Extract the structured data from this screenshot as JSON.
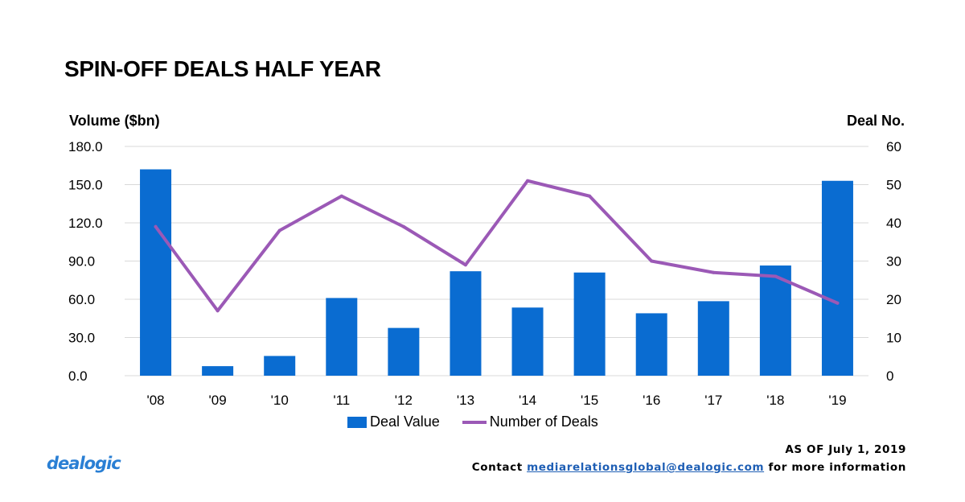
{
  "title": "SPIN-OFF DEALS HALF YEAR",
  "colors": {
    "bar": "#0a6cd1",
    "line": "#9b59b6",
    "grid": "#d9d9d9",
    "link": "#1f5fb5",
    "logo": "#2a7fd4"
  },
  "chart_data": {
    "type": "bar",
    "title": "SPIN-OFF DEALS HALF YEAR",
    "categories": [
      "'08",
      "'09",
      "'10",
      "'11",
      "'12",
      "'13",
      "'14",
      "'15",
      "'16",
      "'17",
      "'18",
      "'19"
    ],
    "series": [
      {
        "name": "Deal Value",
        "type": "bar",
        "axis": "left",
        "values": [
          162.0,
          7.5,
          15.5,
          61.0,
          37.5,
          82.0,
          53.5,
          81.0,
          49.0,
          58.5,
          86.5,
          153.0
        ]
      },
      {
        "name": "Number of Deals",
        "type": "line",
        "axis": "right",
        "values": [
          39,
          17,
          38,
          47,
          39,
          29,
          51,
          47,
          30,
          27,
          26,
          19
        ]
      }
    ],
    "ylabel": "Volume ($bn)",
    "y2label": "Deal No.",
    "ylim": [
      0,
      180
    ],
    "y2lim": [
      0,
      60
    ],
    "yticks": [
      "0.0",
      "30.0",
      "60.0",
      "90.0",
      "120.0",
      "150.0",
      "180.0"
    ],
    "y2ticks": [
      "0",
      "10",
      "20",
      "30",
      "40",
      "50",
      "60"
    ],
    "legend": [
      "Deal Value",
      "Number of Deals"
    ],
    "grid": true,
    "legend_position": "bottom"
  },
  "footer": {
    "as_of": "AS OF July 1, 2019",
    "contact_prefix": "Contact",
    "email": "mediarelationsglobal@dealogic.com",
    "contact_suffix": "for more information"
  },
  "logo_text": "dealogic"
}
